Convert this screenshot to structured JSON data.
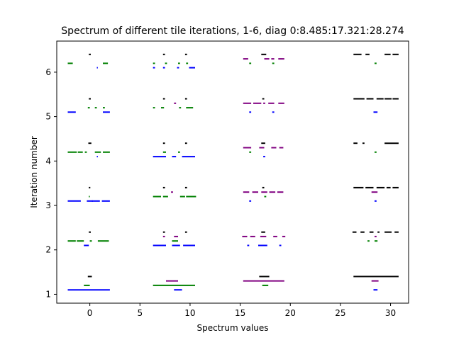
{
  "chart_data": {
    "type": "scatter",
    "title": "Spectrum of different tile iterations, 1-6, diag 0:8.485:17.321:28.274",
    "xlabel": "Spectrum values",
    "ylabel": "Iteration number",
    "xlim": [
      -3.3,
      31.8
    ],
    "ylim": [
      0.8,
      6.7
    ],
    "x_ticks": [
      0,
      5,
      10,
      15,
      20,
      25,
      30
    ],
    "y_ticks": [
      1,
      2,
      3,
      4,
      5,
      6
    ],
    "grid": false,
    "colors": {
      "black": "#000000",
      "green": "#008000",
      "blue": "#0000ff",
      "purple": "#800080"
    },
    "series": [
      {
        "color": "black",
        "segments": [
          [
            -0.2,
            0.2,
            1.4
          ],
          [
            -0.1,
            0.1,
            2.4
          ],
          [
            -0.1,
            0.05,
            3.4
          ],
          [
            -0.15,
            0.15,
            4.4
          ],
          [
            -0.1,
            0.1,
            5.4
          ],
          [
            -0.1,
            0.1,
            6.4
          ],
          [
            7.3,
            7.5,
            2.4
          ],
          [
            9.5,
            9.7,
            2.4
          ],
          [
            7.3,
            7.5,
            3.4
          ],
          [
            9.5,
            9.7,
            3.4
          ],
          [
            7.3,
            7.5,
            4.4
          ],
          [
            9.5,
            9.7,
            4.4
          ],
          [
            7.3,
            7.5,
            5.4
          ],
          [
            9.5,
            9.7,
            5.4
          ],
          [
            7.3,
            7.5,
            6.4
          ],
          [
            9.5,
            9.7,
            6.4
          ],
          [
            16.9,
            17.9,
            1.4
          ],
          [
            17.1,
            17.5,
            2.4
          ],
          [
            17.2,
            17.4,
            3.4
          ],
          [
            17.1,
            17.5,
            4.4
          ],
          [
            17.2,
            17.4,
            5.4
          ],
          [
            17.1,
            17.6,
            6.4
          ],
          [
            26.3,
            30.8,
            1.4
          ],
          [
            26.2,
            26.6,
            2.4
          ],
          [
            27.0,
            27.4,
            2.4
          ],
          [
            27.9,
            28.3,
            2.4
          ],
          [
            28.7,
            28.9,
            2.4
          ],
          [
            29.4,
            30.1,
            2.4
          ],
          [
            30.4,
            30.8,
            2.4
          ],
          [
            26.3,
            27.3,
            3.4
          ],
          [
            27.5,
            28.3,
            3.4
          ],
          [
            28.6,
            29.4,
            3.4
          ],
          [
            29.6,
            30.0,
            3.4
          ],
          [
            30.2,
            30.8,
            3.4
          ],
          [
            26.3,
            26.7,
            4.4
          ],
          [
            27.2,
            27.4,
            4.4
          ],
          [
            29.4,
            30.8,
            4.4
          ],
          [
            26.3,
            27.4,
            5.4
          ],
          [
            27.6,
            28.3,
            5.4
          ],
          [
            28.6,
            29.3,
            5.4
          ],
          [
            29.4,
            30.1,
            5.4
          ],
          [
            30.2,
            30.8,
            5.4
          ],
          [
            26.3,
            27.1,
            6.4
          ],
          [
            27.5,
            27.9,
            6.4
          ],
          [
            29.4,
            30.0,
            6.4
          ],
          [
            30.2,
            30.8,
            6.4
          ]
        ]
      },
      {
        "color": "green",
        "segments": [
          [
            -0.6,
            0.0,
            1.2
          ],
          [
            -2.2,
            -1.4,
            2.2
          ],
          [
            -1.3,
            -0.6,
            2.2
          ],
          [
            0.0,
            0.2,
            2.2
          ],
          [
            0.8,
            1.9,
            2.2
          ],
          [
            -0.1,
            0.0,
            3.2
          ],
          [
            -2.2,
            -1.3,
            4.2
          ],
          [
            -1.2,
            -0.7,
            4.2
          ],
          [
            -0.5,
            -0.3,
            4.2
          ],
          [
            0.5,
            1.1,
            4.2
          ],
          [
            1.3,
            2.0,
            4.2
          ],
          [
            -0.2,
            0.0,
            5.2
          ],
          [
            0.5,
            0.7,
            5.2
          ],
          [
            1.3,
            1.5,
            5.2
          ],
          [
            -2.2,
            -1.7,
            6.2
          ],
          [
            1.3,
            1.8,
            6.2
          ],
          [
            6.3,
            10.5,
            1.2
          ],
          [
            8.2,
            8.8,
            2.2
          ],
          [
            6.3,
            7.1,
            3.2
          ],
          [
            7.3,
            7.8,
            3.2
          ],
          [
            9.0,
            9.5,
            3.2
          ],
          [
            9.6,
            10.6,
            3.2
          ],
          [
            7.3,
            7.6,
            4.2
          ],
          [
            8.8,
            9.0,
            4.2
          ],
          [
            6.3,
            6.5,
            5.2
          ],
          [
            7.1,
            7.4,
            5.2
          ],
          [
            8.9,
            9.1,
            5.2
          ],
          [
            9.6,
            10.3,
            5.2
          ],
          [
            6.3,
            6.5,
            6.2
          ],
          [
            7.5,
            7.7,
            6.2
          ],
          [
            8.8,
            9.0,
            6.2
          ],
          [
            9.6,
            9.8,
            6.2
          ],
          [
            17.2,
            17.8,
            1.2
          ],
          [
            17.4,
            17.6,
            3.2
          ],
          [
            15.9,
            16.1,
            4.2
          ],
          [
            15.9,
            16.1,
            6.2
          ],
          [
            18.2,
            18.4,
            6.2
          ],
          [
            27.7,
            27.9,
            2.2
          ],
          [
            28.4,
            28.7,
            2.2
          ],
          [
            28.4,
            28.6,
            4.2
          ],
          [
            28.4,
            28.6,
            6.2
          ]
        ]
      },
      {
        "color": "blue",
        "segments": [
          [
            -2.2,
            2.0,
            1.1
          ],
          [
            -0.6,
            -0.1,
            2.1
          ],
          [
            -2.2,
            -0.9,
            3.1
          ],
          [
            -0.3,
            0.3,
            3.1
          ],
          [
            0.2,
            1.0,
            3.1
          ],
          [
            1.2,
            2.0,
            3.1
          ],
          [
            0.7,
            0.8,
            4.1
          ],
          [
            -2.2,
            -1.4,
            5.1
          ],
          [
            1.3,
            2.0,
            5.1
          ],
          [
            0.7,
            0.8,
            6.1
          ],
          [
            8.4,
            9.2,
            1.1
          ],
          [
            6.3,
            7.6,
            2.1
          ],
          [
            8.2,
            9.0,
            2.1
          ],
          [
            9.3,
            10.5,
            2.1
          ],
          [
            6.3,
            7.6,
            4.1
          ],
          [
            8.2,
            8.6,
            4.1
          ],
          [
            9.2,
            10.5,
            4.1
          ],
          [
            6.3,
            6.5,
            6.1
          ],
          [
            7.3,
            7.5,
            6.1
          ],
          [
            8.7,
            8.9,
            6.1
          ],
          [
            9.9,
            10.5,
            6.1
          ],
          [
            15.7,
            15.9,
            2.1
          ],
          [
            16.8,
            17.7,
            2.1
          ],
          [
            18.9,
            19.1,
            2.1
          ],
          [
            15.9,
            16.1,
            3.1
          ],
          [
            17.3,
            17.5,
            4.1
          ],
          [
            15.9,
            16.1,
            5.1
          ],
          [
            18.2,
            18.4,
            5.1
          ],
          [
            28.3,
            28.7,
            1.1
          ],
          [
            28.4,
            28.6,
            3.1
          ],
          [
            28.3,
            28.7,
            5.1
          ]
        ]
      },
      {
        "color": "purple",
        "segments": [
          [
            7.6,
            8.8,
            1.3
          ],
          [
            7.3,
            7.5,
            2.3
          ],
          [
            8.4,
            8.8,
            2.3
          ],
          [
            8.1,
            8.3,
            3.3
          ],
          [
            8.4,
            8.6,
            5.3
          ],
          [
            15.3,
            19.4,
            1.3
          ],
          [
            15.2,
            15.7,
            2.3
          ],
          [
            16.0,
            16.5,
            2.3
          ],
          [
            17.0,
            17.6,
            2.3
          ],
          [
            18.3,
            18.7,
            2.3
          ],
          [
            19.2,
            19.5,
            2.3
          ],
          [
            15.3,
            15.9,
            3.3
          ],
          [
            16.2,
            16.8,
            3.3
          ],
          [
            17.1,
            17.7,
            3.3
          ],
          [
            17.9,
            18.5,
            3.3
          ],
          [
            18.7,
            19.3,
            3.3
          ],
          [
            15.3,
            16.1,
            4.3
          ],
          [
            16.9,
            17.4,
            4.3
          ],
          [
            18.1,
            18.6,
            4.3
          ],
          [
            18.9,
            19.3,
            4.3
          ],
          [
            15.3,
            16.1,
            5.3
          ],
          [
            16.3,
            17.1,
            5.3
          ],
          [
            17.3,
            17.5,
            5.3
          ],
          [
            17.8,
            18.4,
            5.3
          ],
          [
            18.8,
            19.4,
            5.3
          ],
          [
            15.3,
            15.8,
            6.3
          ],
          [
            17.4,
            17.9,
            6.3
          ],
          [
            18.1,
            18.4,
            6.3
          ],
          [
            18.8,
            19.4,
            6.3
          ],
          [
            28.1,
            28.8,
            1.3
          ],
          [
            28.4,
            28.6,
            2.3
          ],
          [
            28.1,
            28.7,
            3.3
          ]
        ]
      }
    ]
  }
}
